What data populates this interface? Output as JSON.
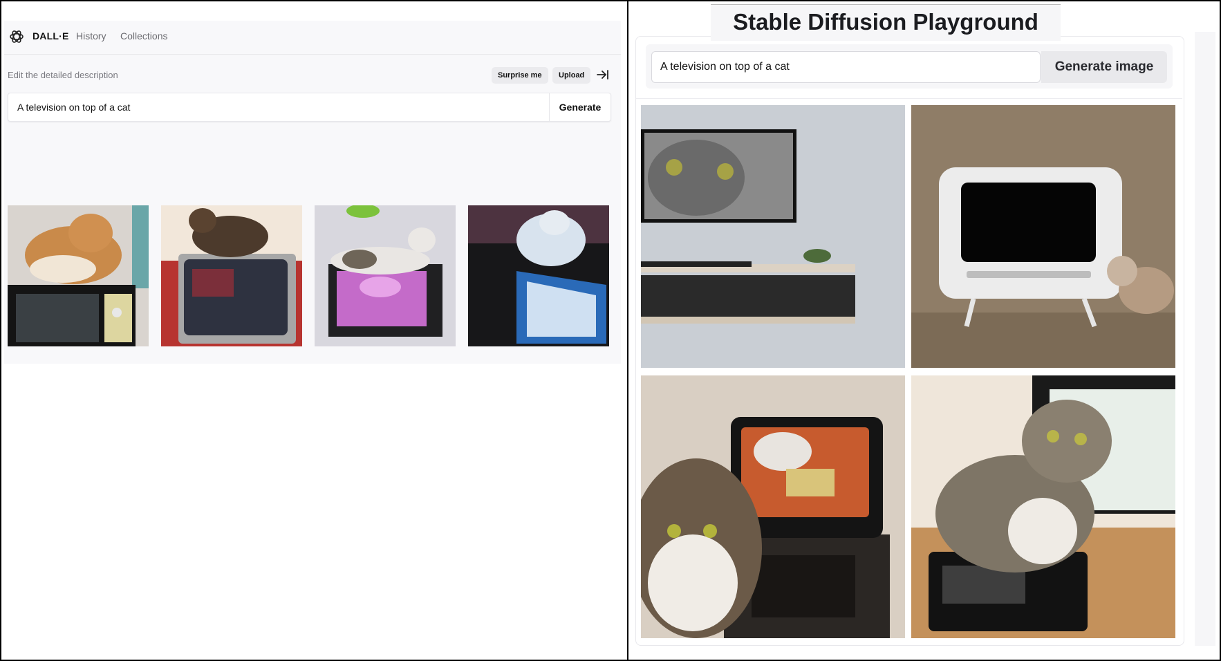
{
  "dalle": {
    "brand": "DALL·E",
    "nav": {
      "history": "History",
      "collections": "Collections"
    },
    "hint": "Edit the detailed description",
    "surprise_label": "Surprise me",
    "upload_label": "Upload",
    "prompt_value": "A television on top of a cat",
    "generate_label": "Generate"
  },
  "sd": {
    "title": "Stable Diffusion Playground",
    "prompt_value": "A television on top of a cat",
    "generate_label": "Generate image"
  },
  "icons": {
    "logo": "openai-logo-icon",
    "arrow": "arrow-right-bar-icon"
  }
}
